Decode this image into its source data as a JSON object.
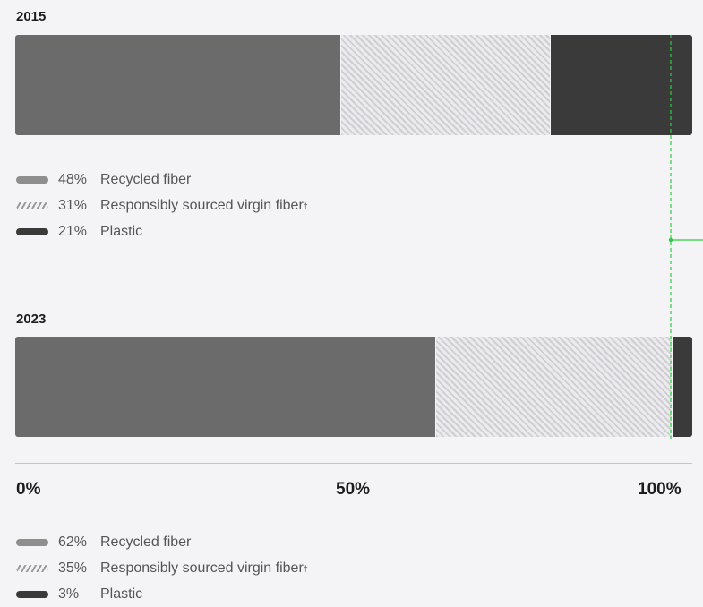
{
  "chart_data": {
    "type": "bar",
    "orientation": "horizontal",
    "stacked": true,
    "categories": [
      "2015",
      "2023"
    ],
    "series": [
      {
        "name": "Recycled fiber",
        "values": [
          48,
          62
        ],
        "color": "#6b6b6b",
        "pattern": "solid"
      },
      {
        "name": "Responsibly sourced virgin fiber",
        "values": [
          31,
          35
        ],
        "color": "#cfcfd3",
        "pattern": "hatched"
      },
      {
        "name": "Plastic",
        "values": [
          21,
          3
        ],
        "color": "#3a3a3a",
        "pattern": "solid"
      }
    ],
    "legend_mark": "†",
    "percent_labels": {
      "2015": [
        "48%",
        "31%",
        "21%"
      ],
      "2023": [
        "62%",
        "35%",
        "3%"
      ]
    },
    "xlim": [
      0,
      100
    ],
    "x_ticks": [
      "0%",
      "50%",
      "100%"
    ],
    "grid": false,
    "annotation_color": "#2ecc40"
  }
}
